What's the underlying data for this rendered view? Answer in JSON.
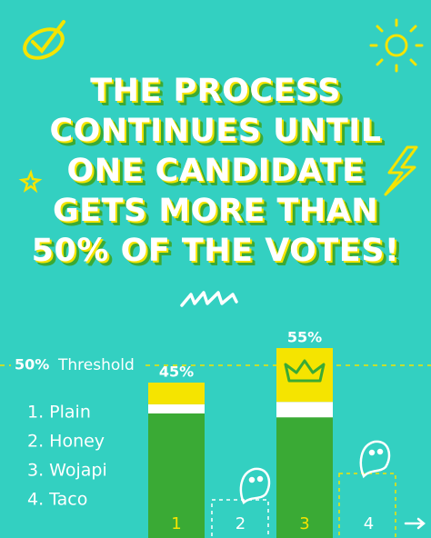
{
  "chart_data": {
    "type": "bar",
    "title_lines": [
      "THE PROCESS",
      "CONTINUES UNTIL",
      "ONE CANDIDATE",
      "GETS MORE THAN",
      "50% OF THE VOTES!"
    ],
    "categories": [
      "1",
      "2",
      "3",
      "4"
    ],
    "values": [
      45,
      null,
      55,
      null
    ],
    "value_labels": [
      "45%",
      null,
      "55%",
      null
    ],
    "color": "#3aaa35",
    "ylim": [
      0,
      100
    ],
    "threshold": {
      "value": 50,
      "label": "50%",
      "text": "Threshold"
    },
    "legend_items": [
      "1. Plain",
      "2. Honey",
      "3. Wojapi",
      "4. Taco"
    ]
  }
}
